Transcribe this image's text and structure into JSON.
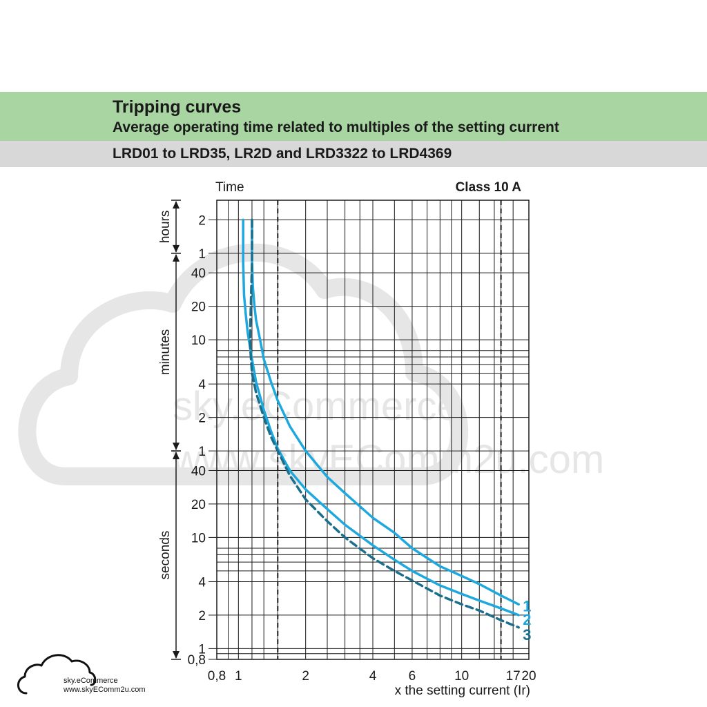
{
  "header": {
    "title": "Tripping curves",
    "subtitle": "Average operating time related to multiples of the setting current",
    "range": "LRD01 to LRD35, LR2D and LRD3322 to LRD4369"
  },
  "watermark": {
    "line1": "sky.eCommerce",
    "line2": "www.skyEComm2u.com"
  },
  "logo": {
    "line1": "sky.eCommerce",
    "line2": "www.skyEComm2u.com"
  },
  "colors": {
    "band_green": "#a8d5a2",
    "band_grey": "#d8d8d8",
    "curve_light": "#1ea8dd",
    "curve_dashed": "#1b6e8c",
    "grid": "#1a1a1a",
    "watermark": "#e4e4e4"
  },
  "chart_data": {
    "type": "line",
    "title": "Class 10 A",
    "xlabel": "x the setting current (Ir)",
    "ylabel": "Time",
    "x_scale": "log",
    "y_scale": "log",
    "xlim": [
      0.8,
      20
    ],
    "ylim_seconds": [
      0.8,
      10800
    ],
    "grid": true,
    "x_ticks": [
      {
        "value": 0.8,
        "label": "0,8"
      },
      {
        "value": 1,
        "label": "1"
      },
      {
        "value": 2,
        "label": "2"
      },
      {
        "value": 4,
        "label": "4"
      },
      {
        "value": 6,
        "label": "6"
      },
      {
        "value": 10,
        "label": "10"
      },
      {
        "value": 17,
        "label": "17"
      },
      {
        "value": 20,
        "label": "20"
      }
    ],
    "x_gridlines": [
      0.8,
      0.9,
      1,
      1.15,
      1.3,
      1.5,
      2,
      2.5,
      3,
      3.5,
      4,
      5,
      6,
      7,
      8,
      9,
      10,
      12,
      14,
      15,
      17,
      20
    ],
    "x_dashed_lines": [
      1.5,
      15
    ],
    "y_ticks": [
      {
        "seconds": 7200,
        "label": "2"
      },
      {
        "seconds": 3600,
        "label": "1"
      },
      {
        "seconds": 2400,
        "label": "40"
      },
      {
        "seconds": 1200,
        "label": "20"
      },
      {
        "seconds": 600,
        "label": "10"
      },
      {
        "seconds": 240,
        "label": "4"
      },
      {
        "seconds": 120,
        "label": "2"
      },
      {
        "seconds": 60,
        "label": "1"
      },
      {
        "seconds": 40,
        "label": "40"
      },
      {
        "seconds": 20,
        "label": "20"
      },
      {
        "seconds": 10,
        "label": "10"
      },
      {
        "seconds": 4,
        "label": "4"
      },
      {
        "seconds": 2,
        "label": "2"
      },
      {
        "seconds": 1,
        "label": "1"
      },
      {
        "seconds": 0.8,
        "label": "0,8"
      }
    ],
    "y_gridlines": [
      10800,
      7200,
      3600,
      2400,
      1200,
      600,
      480,
      420,
      360,
      300,
      240,
      120,
      60,
      40,
      20,
      10,
      8,
      7,
      6,
      5,
      4,
      2,
      1,
      0.9,
      0.8
    ],
    "y_groups": [
      {
        "label": "hours",
        "from_seconds": 3600,
        "to_seconds": 10800
      },
      {
        "label": "minutes",
        "from_seconds": 60,
        "to_seconds": 3600
      },
      {
        "label": "seconds",
        "from_seconds": 0.8,
        "to_seconds": 60
      }
    ],
    "series": [
      {
        "name": "1",
        "style": "solid",
        "x": [
          1.15,
          1.15,
          1.16,
          1.18,
          1.2,
          1.25,
          1.3,
          1.4,
          1.5,
          1.7,
          2,
          2.5,
          3,
          4,
          5,
          6,
          8,
          10,
          12,
          15,
          18
        ],
        "y": [
          7200,
          3000,
          1800,
          1200,
          900,
          600,
          400,
          250,
          170,
          100,
          60,
          35,
          25,
          15,
          11,
          8,
          5.5,
          4.5,
          3.8,
          3,
          2.5
        ]
      },
      {
        "name": "2",
        "style": "solid",
        "x": [
          1.05,
          1.05,
          1.06,
          1.08,
          1.1,
          1.15,
          1.2,
          1.3,
          1.4,
          1.5,
          1.7,
          2,
          2.5,
          3,
          4,
          5,
          6,
          8,
          10,
          12,
          15,
          18
        ],
        "y": [
          7200,
          3000,
          1500,
          1000,
          700,
          400,
          250,
          140,
          90,
          63,
          40,
          27,
          18,
          13,
          8.5,
          6.3,
          5,
          3.7,
          3.1,
          2.7,
          2.3,
          2
        ]
      },
      {
        "name": "3",
        "style": "dashed",
        "x": [
          1.15,
          1.15,
          1.14,
          1.13,
          1.13,
          1.15,
          1.2,
          1.3,
          1.4,
          1.5,
          1.7,
          2,
          2.5,
          3,
          4,
          5,
          6,
          8,
          10,
          12,
          15,
          18
        ],
        "y": [
          7200,
          3000,
          1500,
          800,
          500,
          300,
          200,
          120,
          80,
          60,
          36,
          22,
          14,
          10,
          6.5,
          5,
          4.1,
          3,
          2.5,
          2.2,
          1.8,
          1.55
        ]
      }
    ]
  }
}
